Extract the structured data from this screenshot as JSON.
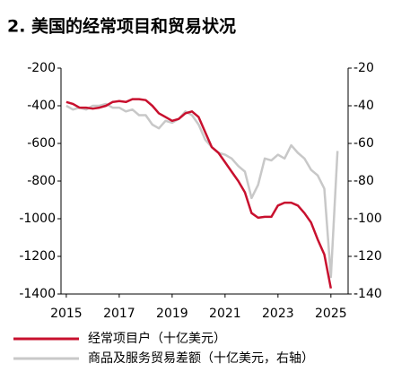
{
  "chart_data": {
    "type": "line",
    "title": "2. 美国的经常项目和贸易状况",
    "x": [
      2015,
      2015.25,
      2015.5,
      2015.75,
      2016,
      2016.25,
      2016.5,
      2016.75,
      2017,
      2017.25,
      2017.5,
      2017.75,
      2018,
      2018.25,
      2018.5,
      2018.75,
      2019,
      2019.25,
      2019.5,
      2019.75,
      2020,
      2020.25,
      2020.5,
      2020.75,
      2021,
      2021.25,
      2021.5,
      2021.75,
      2022,
      2022.25,
      2022.5,
      2022.75,
      2023,
      2023.25,
      2023.5,
      2023.75,
      2024,
      2024.25,
      2024.5,
      2024.75,
      2025,
      2025.25
    ],
    "series": [
      {
        "name": "经常项目户（十亿美元）",
        "color": "#c8102e",
        "values": [
          -380,
          -390,
          -410,
          -410,
          -415,
          -410,
          -400,
          -380,
          -375,
          -380,
          -365,
          -365,
          -370,
          -400,
          -440,
          -460,
          -480,
          -470,
          -440,
          -430,
          -460,
          -540,
          -620,
          -650,
          -700,
          -750,
          -800,
          -860,
          -970,
          -995,
          -990,
          -990,
          -930,
          -915,
          -915,
          -930,
          -970,
          -1020,
          -1110,
          -1190,
          -1370,
          null
        ]
      },
      {
        "name": "商品及服务贸易差额（十亿美元，右轴）",
        "color": "#c8c8c8",
        "axis": "y2",
        "values": [
          -40,
          -42,
          -41,
          -42,
          -40,
          -40,
          -39,
          -41,
          -41,
          -43,
          -42,
          -45,
          -45,
          -50,
          -52,
          -48,
          -49,
          -47,
          -43,
          -45,
          -50,
          -58,
          -62,
          -65,
          -66,
          -68,
          -72,
          -75,
          -89,
          -82,
          -68,
          -69,
          -66,
          -68,
          -61,
          -65,
          -68,
          -74,
          -77,
          -84,
          -131,
          -64
        ]
      }
    ],
    "xlim": [
      2014.8,
      2025.65
    ],
    "xticks": [
      2015,
      2017,
      2019,
      2021,
      2023,
      2025
    ],
    "ylim": [
      -1400,
      -200
    ],
    "yticks": [
      -200,
      -400,
      -600,
      -800,
      -1000,
      -1200,
      -1400
    ],
    "y2lim": [
      -140,
      -20
    ],
    "y2ticks": [
      -20,
      -40,
      -60,
      -80,
      -100,
      -120,
      -140
    ]
  }
}
